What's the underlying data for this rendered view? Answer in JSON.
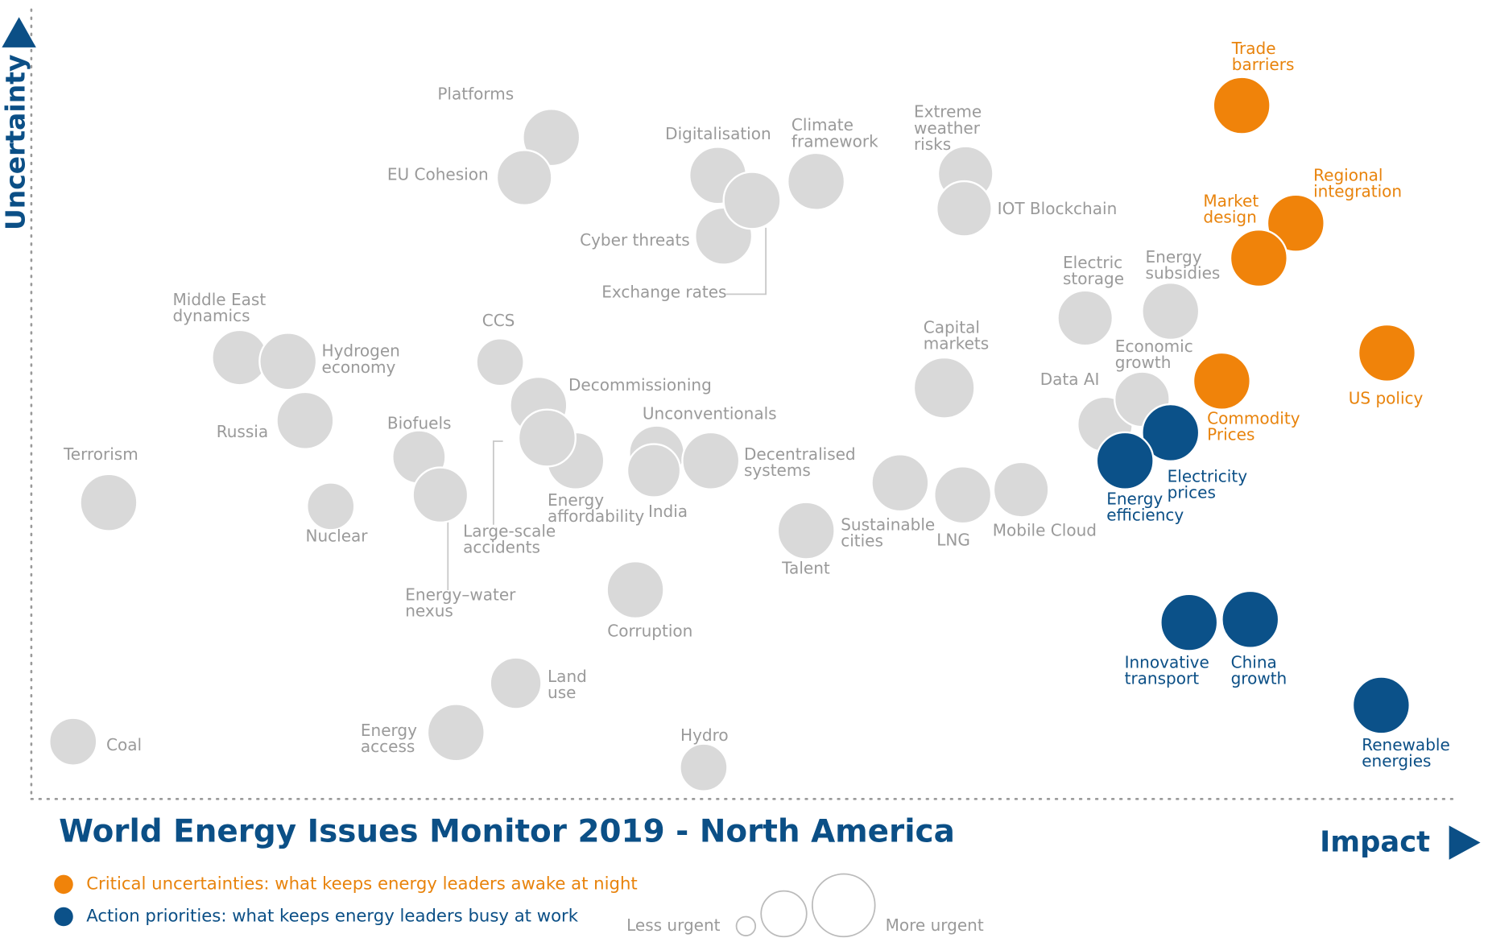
{
  "chart_data": {
    "type": "bubble",
    "title": "World Energy Issues Monitor 2019 - North America",
    "x_label": "Impact",
    "y_label": "Uncertainty",
    "xlim": [
      0,
      100
    ],
    "ylim": [
      0,
      100
    ],
    "size_legend": {
      "min_label": "Less urgent",
      "max_label": "More urgent"
    },
    "series": [
      {
        "name": "Critical uncertainties: what keeps energy leaders awake at night",
        "color": "#f0830a",
        "label_color": "#e8830c",
        "labels": [
          [
            "Trade",
            "barriers"
          ],
          [
            "Regional",
            "integration"
          ],
          [
            "Market",
            "design"
          ],
          [
            "US policy"
          ],
          [
            "Commodity",
            "Prices"
          ]
        ],
        "x": [
          84.9,
          88.7,
          86.1,
          95.1,
          83.5
        ],
        "values": [
          91.1,
          75.6,
          71.0,
          58.5,
          54.8
        ],
        "sizes": [
          30,
          30,
          30,
          30,
          30
        ]
      },
      {
        "name": "Action priorities: what keeps energy leaders busy at work",
        "color": "#0b5189",
        "label_color": "#0b4f86",
        "labels": [
          [
            "Electricity",
            "prices"
          ],
          [
            "Energy",
            "efficiency"
          ],
          [
            "Innovative",
            "transport"
          ],
          [
            "China",
            "growth"
          ],
          [
            "Renewable",
            "energies"
          ]
        ],
        "x": [
          79.9,
          76.7,
          81.2,
          85.5,
          94.7
        ],
        "values": [
          48.0,
          44.3,
          23.0,
          23.4,
          12.1
        ],
        "sizes": [
          30,
          30,
          30,
          30,
          30
        ]
      },
      {
        "color": "#d9d9d9",
        "label_color": "#9a9a9a",
        "labels": [
          [
            "Platforms"
          ],
          [
            "EU Cohesion"
          ],
          [
            "Digitalisation"
          ],
          [
            "Cyber threats"
          ],
          [
            "Exchange rates"
          ],
          [
            "Climate",
            "framework"
          ],
          [
            "Extreme",
            "weather",
            "risks"
          ],
          [
            "IOT Blockchain"
          ],
          [
            "Electric",
            "storage"
          ],
          [
            "Energy",
            "subsidies"
          ],
          [
            "Capital",
            "markets"
          ],
          [
            "Data AI"
          ],
          [
            "Economic",
            "growth"
          ],
          [
            "Middle East",
            "dynamics"
          ],
          [
            "Hydrogen",
            "economy"
          ],
          [
            "Russia"
          ],
          [
            "Terrorism"
          ],
          [
            "CCS"
          ],
          [
            "Decommissioning"
          ],
          [
            "Energy",
            "affordability"
          ],
          [
            "Large-scale",
            "accidents"
          ],
          [
            "Unconventionals"
          ],
          [
            "India"
          ],
          [
            "Decentralised",
            "systems"
          ],
          [
            "Biofuels"
          ],
          [
            "Energy–water",
            "nexus"
          ],
          [
            "Nuclear"
          ],
          [
            "Sustainable",
            "cities"
          ],
          [
            "Talent"
          ],
          [
            "LNG"
          ],
          [
            "Mobile Cloud"
          ],
          [
            "Corruption"
          ],
          [
            "Land",
            "use"
          ],
          [
            "Energy",
            "access"
          ],
          [
            "Coal"
          ],
          [
            "Hydro"
          ]
        ],
        "x": [
          36.4,
          34.5,
          48.1,
          48.5,
          50.5,
          55.0,
          65.5,
          65.4,
          73.9,
          79.9,
          64.0,
          75.3,
          77.9,
          14.5,
          17.9,
          19.1,
          5.3,
          32.8,
          35.5,
          38.1,
          36.1,
          43.8,
          43.6,
          47.6,
          27.1,
          28.6,
          20.9,
          60.9,
          54.3,
          65.3,
          69.4,
          42.3,
          33.9,
          29.7,
          2.8,
          47.1
        ],
        "values": [
          86.9,
          81.6,
          81.9,
          73.9,
          78.6,
          81.1,
          82.1,
          77.5,
          63.1,
          64.0,
          53.9,
          49.1,
          52.4,
          57.9,
          57.4,
          49.6,
          38.8,
          57.3,
          51.6,
          44.3,
          47.3,
          45.3,
          43.0,
          44.3,
          44.8,
          39.8,
          38.3,
          41.4,
          35.1,
          39.8,
          40.5,
          27.3,
          15.0,
          8.5,
          7.3,
          3.9
        ],
        "sizes": [
          30,
          29,
          30,
          30,
          30,
          30,
          29,
          29,
          29,
          30,
          32,
          29,
          29,
          29,
          30,
          30,
          30,
          25,
          30,
          30,
          30,
          29,
          28,
          30,
          28,
          29,
          25,
          30,
          30,
          30,
          29,
          30,
          27,
          30,
          25,
          25
        ]
      }
    ]
  }
}
